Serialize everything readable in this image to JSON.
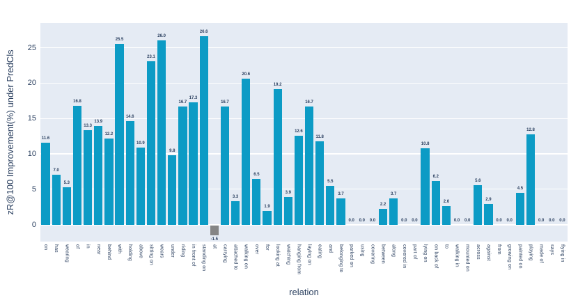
{
  "chart_data": {
    "type": "bar",
    "title": "",
    "xlabel": "relation",
    "ylabel": "zR@100 Improvement(%) under PredCls",
    "categories": [
      "on",
      "has",
      "wearing",
      "of",
      "in",
      "near",
      "behind",
      "with",
      "holding",
      "above",
      "sitting on",
      "wears",
      "under",
      "riding",
      "in front of",
      "standing on",
      "at",
      "carrying",
      "attached to",
      "walking on",
      "over",
      "for",
      "looking at",
      "watching",
      "hanging from",
      "laying on",
      "eating",
      "and",
      "belonging to",
      "parked on",
      "using",
      "covering",
      "between",
      "along",
      "covered in",
      "part of",
      "lying on",
      "on back of",
      "to",
      "walking in",
      "mounted on",
      "across",
      "against",
      "from",
      "growing on",
      "painted on",
      "playing",
      "made of",
      "says",
      "flying in"
    ],
    "values": [
      11.6,
      7.0,
      5.3,
      16.8,
      13.3,
      13.9,
      12.2,
      25.5,
      14.6,
      10.9,
      23.1,
      26.0,
      9.8,
      16.7,
      17.3,
      26.6,
      -1.5,
      16.7,
      3.3,
      20.6,
      6.5,
      1.9,
      19.2,
      3.9,
      12.6,
      16.7,
      11.8,
      5.5,
      3.7,
      0.0,
      0.0,
      0.0,
      2.2,
      3.7,
      0.0,
      0.0,
      10.8,
      6.2,
      2.6,
      0.0,
      0.0,
      5.6,
      2.9,
      0.0,
      0.0,
      4.5,
      12.8,
      0.0,
      0.0,
      0.0
    ],
    "yticks": [
      0,
      5,
      10,
      15,
      20,
      25
    ],
    "ylim": [
      -2.4,
      28.5
    ],
    "grid": "horizontal",
    "legend_position": "none",
    "colors": {
      "bar": "#0c9bc5",
      "negative_bar": "#858585",
      "plot_background": "#e5ebf4",
      "gridline": "#ffffff",
      "text": "#2a3f5f"
    }
  }
}
